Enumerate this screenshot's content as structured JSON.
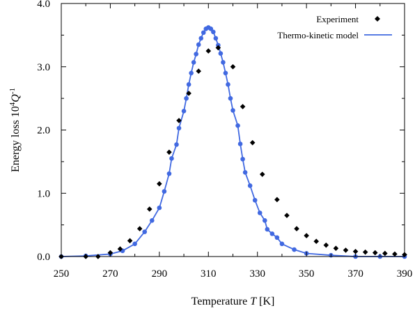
{
  "chart_data": {
    "type": "scatter",
    "title": "",
    "xlabel": {
      "prefix": "Temperature ",
      "symbol": "T",
      "unit": " [K]"
    },
    "ylabel": {
      "prefix": "Energy loss 10",
      "exp1": "4",
      "symbol": "Q",
      "exp2": "-1"
    },
    "xlim": [
      250,
      390
    ],
    "ylim": [
      0,
      4.0
    ],
    "xticks": [
      250,
      270,
      290,
      310,
      330,
      350,
      370,
      390
    ],
    "yticks": [
      "0.0",
      "1.0",
      "2.0",
      "3.0",
      "4.0"
    ],
    "legend_position": "top-right",
    "grid": false,
    "series": [
      {
        "name": "Experiment",
        "style": "markers",
        "marker": "diamond",
        "color": "#000000",
        "points": [
          [
            250,
            0.0
          ],
          [
            260,
            0.0
          ],
          [
            265,
            0.0
          ],
          [
            270,
            0.06
          ],
          [
            274,
            0.12
          ],
          [
            278,
            0.25
          ],
          [
            282,
            0.44
          ],
          [
            286,
            0.75
          ],
          [
            290,
            1.15
          ],
          [
            294,
            1.65
          ],
          [
            298,
            2.15
          ],
          [
            302,
            2.58
          ],
          [
            306,
            2.93
          ],
          [
            310,
            3.25
          ],
          [
            314,
            3.3
          ],
          [
            320,
            3.0
          ],
          [
            324,
            2.37
          ],
          [
            328,
            1.8
          ],
          [
            332,
            1.3
          ],
          [
            338,
            0.9
          ],
          [
            342,
            0.65
          ],
          [
            346,
            0.44
          ],
          [
            350,
            0.33
          ],
          [
            354,
            0.24
          ],
          [
            358,
            0.18
          ],
          [
            362,
            0.13
          ],
          [
            366,
            0.1
          ],
          [
            370,
            0.08
          ],
          [
            374,
            0.07
          ],
          [
            378,
            0.06
          ],
          [
            382,
            0.05
          ],
          [
            386,
            0.04
          ],
          [
            390,
            0.03
          ]
        ]
      },
      {
        "name": "Thermo-kinetic model",
        "style": "line+markers",
        "marker": "circle",
        "color": "#4169e1",
        "points": [
          [
            250,
            0.0
          ],
          [
            260,
            0.01
          ],
          [
            270,
            0.04
          ],
          [
            275,
            0.09
          ],
          [
            280,
            0.2
          ],
          [
            284,
            0.39
          ],
          [
            287,
            0.57
          ],
          [
            290,
            0.77
          ],
          [
            292,
            1.03
          ],
          [
            294,
            1.31
          ],
          [
            295,
            1.55
          ],
          [
            297,
            1.77
          ],
          [
            298,
            2.03
          ],
          [
            300,
            2.3
          ],
          [
            301,
            2.5
          ],
          [
            302,
            2.72
          ],
          [
            303,
            2.9
          ],
          [
            304,
            3.07
          ],
          [
            305,
            3.2
          ],
          [
            306,
            3.35
          ],
          [
            307,
            3.45
          ],
          [
            308,
            3.54
          ],
          [
            309,
            3.6
          ],
          [
            310,
            3.62
          ],
          [
            311,
            3.6
          ],
          [
            312,
            3.55
          ],
          [
            313,
            3.45
          ],
          [
            314,
            3.34
          ],
          [
            315,
            3.21
          ],
          [
            316,
            3.07
          ],
          [
            317,
            2.9
          ],
          [
            318,
            2.72
          ],
          [
            319,
            2.5
          ],
          [
            320,
            2.31
          ],
          [
            322,
            2.07
          ],
          [
            323,
            1.78
          ],
          [
            324,
            1.54
          ],
          [
            325,
            1.33
          ],
          [
            327,
            1.12
          ],
          [
            329,
            0.89
          ],
          [
            331,
            0.69
          ],
          [
            333,
            0.57
          ],
          [
            334,
            0.43
          ],
          [
            336,
            0.36
          ],
          [
            338,
            0.3
          ],
          [
            340,
            0.2
          ],
          [
            345,
            0.11
          ],
          [
            350,
            0.05
          ],
          [
            360,
            0.02
          ],
          [
            370,
            0.0
          ],
          [
            380,
            0.0
          ],
          [
            390,
            0.0
          ]
        ]
      }
    ]
  }
}
